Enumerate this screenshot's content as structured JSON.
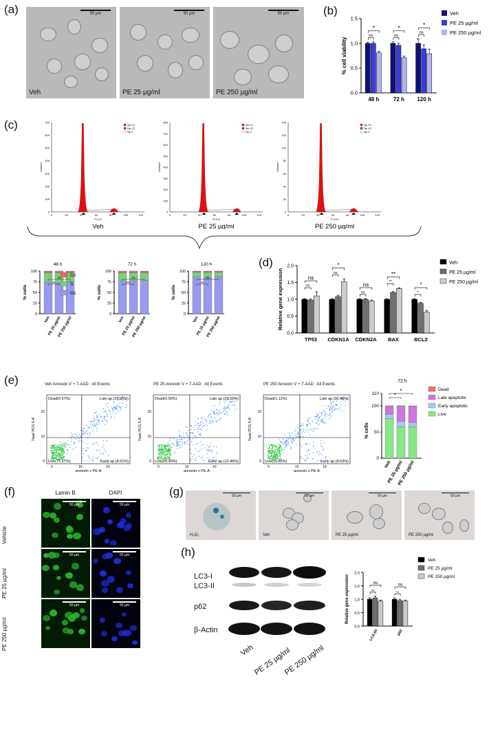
{
  "panels": {
    "a": "(a)",
    "b": "(b)",
    "c": "(c)",
    "d": "(d)",
    "e": "(e)",
    "f": "(f)",
    "g": "(g)",
    "h": "(h)"
  },
  "panel_a": {
    "images": [
      {
        "caption": "Veh",
        "scale": "50 µm"
      },
      {
        "caption": "PE 25 µg/ml",
        "scale": "50 µm"
      },
      {
        "caption": "PE 250 µg/ml",
        "scale": "50 µm"
      }
    ]
  },
  "panel_c": {
    "histograms": [
      {
        "caption": "Veh",
        "ymax": 700,
        "yticks": [
          "0",
          "100",
          "200",
          "300",
          "400",
          "500",
          "600",
          "700"
        ],
        "peak_x": 42
      },
      {
        "caption": "PE 25 µg/ml",
        "ymax": 800,
        "yticks": [
          "0",
          "100",
          "200",
          "300",
          "400",
          "500",
          "600",
          "700",
          "800"
        ],
        "peak_x": 45
      },
      {
        "caption": "PE 250 µg/ml",
        "ymax": 140,
        "yticks": [
          "0",
          "20",
          "40",
          "60",
          "80",
          "100",
          "120",
          "140"
        ],
        "peak_x": 44
      }
    ],
    "xticks": [
      "0",
      "20",
      "40",
      "60",
      "80",
      "100",
      "120"
    ],
    "xlabel": "FL2-A",
    "ylabel": "Number",
    "legend": [
      "Dip G1",
      "Dip G2",
      "Dip S"
    ]
  },
  "panel_e": {
    "plots": [
      {
        "title": "Veh Annexin V + 7-AAD : All Events",
        "dead": "Dead(0.57%)",
        "late": "Late ap.(15.35%)",
        "live": "Live(75.57%)",
        "early": "Early ap.(8.51%)"
      },
      {
        "title": "PE 25 Annexin V + 7-AAD : All Events",
        "dead": "Dead(0.59%)",
        "late": "Late ap.(28.55%)",
        "live": "Live(60.40%)",
        "early": "Early ap.(10.46%)"
      },
      {
        "title": "PE 250 Annexin V + 7-AAD : All Events",
        "dead": "Dead(1.12%)",
        "late": "Late ap.(30.40%)",
        "live": "Live(59.85%)",
        "early": "Early ap.(8.63%)"
      }
    ],
    "xlabel": "annexin v PE-A",
    "ylabel": "7aad PC5.5-A",
    "xticks": [
      "0",
      "10",
      "10"
    ],
    "yticks": [
      "0",
      "10",
      "10"
    ]
  },
  "panel_f": {
    "columns": [
      "Lamin B",
      "DAPI"
    ],
    "rows": [
      "Vehicle",
      "PE 25 µg/ml",
      "PE 250 µg/ml"
    ],
    "scale": "50 µm"
  },
  "panel_g": {
    "images": [
      {
        "caption": "H₂O₂",
        "scale": "50 µm"
      },
      {
        "caption": "Veh",
        "scale": "50 µm"
      },
      {
        "caption": "PE 25 µg/ml",
        "scale": "50 µm"
      },
      {
        "caption": "PE 250 µg/ml",
        "scale": "50 µm"
      }
    ]
  },
  "panel_h": {
    "blot_labels": [
      "LC3-I",
      "LC3-II",
      "p62",
      "β-Actin"
    ],
    "lanes": [
      "Veh",
      "PE 25 µg/ml",
      "PE 250 µg/ml"
    ]
  },
  "colors": {
    "veh_b": "#10107a",
    "pe25_b": "#3c3cdc",
    "pe250_b": "#b4b4f0",
    "g1": "#9999ee",
    "s": "#7ccd7c",
    "g2": "#e46a6a",
    "live": "#88e888",
    "early": "#a8c8f0",
    "late": "#cc77dd",
    "dead": "#f07070",
    "veh_g": "#000000",
    "pe25_g": "#707070",
    "pe250_g": "#cccccc"
  },
  "chart_data": [
    {
      "id": "b",
      "type": "bar",
      "categories": [
        "48 h",
        "72 h",
        "120 h"
      ],
      "series": [
        {
          "name": "Veh",
          "values": [
            1.0,
            1.0,
            1.0
          ],
          "err": [
            0.02,
            0.03,
            0.09
          ]
        },
        {
          "name": "PE 25 µg/ml",
          "values": [
            1.0,
            0.96,
            0.89
          ],
          "err": [
            0.03,
            0.04,
            0.08
          ]
        },
        {
          "name": "PE 250 µg/ml",
          "values": [
            0.81,
            0.71,
            0.79
          ],
          "err": [
            0.03,
            0.03,
            0.09
          ]
        }
      ],
      "ylabel": "% cell viability",
      "ylim": [
        0,
        1.5
      ],
      "yticks": [
        "0.0",
        "0.5",
        "1.0",
        "1.5"
      ],
      "significance": [
        [
          "ns",
          "*"
        ],
        [
          "ns",
          "*"
        ],
        [
          "ns",
          "*"
        ]
      ]
    },
    {
      "id": "c_bars",
      "type": "bar",
      "stacked": true,
      "panels": [
        {
          "title": "48 h",
          "categories": [
            "Veh",
            "PE 25 µg/ml",
            "PE 250 µg/ml"
          ],
          "series": [
            {
              "name": "G1",
              "values": [
                74,
                72,
                75
              ]
            },
            {
              "name": "S",
              "values": [
                22,
                24,
                21
              ]
            },
            {
              "name": "G2",
              "values": [
                4,
                4,
                4
              ]
            }
          ]
        },
        {
          "title": "72 h",
          "categories": [
            "Veh",
            "PE 25 µg/ml",
            "PE 250 µg/ml"
          ],
          "series": [
            {
              "name": "G1",
              "values": [
                76,
                77,
                78
              ]
            },
            {
              "name": "S",
              "values": [
                20,
                19,
                18
              ]
            },
            {
              "name": "G2",
              "values": [
                4,
                4,
                4
              ]
            }
          ]
        },
        {
          "title": "120 h",
          "categories": [
            "Veh",
            "PE 25 µg/ml",
            "PE 250 µg/ml"
          ],
          "series": [
            {
              "name": "G1",
              "values": [
                86,
                84,
                87
              ]
            },
            {
              "name": "S",
              "values": [
                11,
                13,
                10
              ]
            },
            {
              "name": "G2",
              "values": [
                3,
                3,
                3
              ]
            }
          ]
        }
      ],
      "legend": [
        "G2",
        "S",
        "G1"
      ],
      "ylabel": "% cells",
      "ylim": [
        0,
        100
      ],
      "yticks": [
        "0",
        "25",
        "50",
        "75",
        "100"
      ],
      "significance": [
        "ns",
        "ns"
      ]
    },
    {
      "id": "d",
      "type": "bar",
      "categories": [
        "TP53",
        "CDKN1A",
        "CDKN2A",
        "BAX",
        "BCL2"
      ],
      "series": [
        {
          "name": "Veh",
          "values": [
            1.0,
            1.0,
            1.0,
            1.0,
            1.0
          ],
          "err": [
            0.02,
            0.02,
            0.02,
            0.02,
            0.02
          ]
        },
        {
          "name": "PE 25 µg/ml",
          "values": [
            0.98,
            1.08,
            1.0,
            1.2,
            0.88
          ],
          "err": [
            0.03,
            0.04,
            0.02,
            0.03,
            0.03
          ]
        },
        {
          "name": "PE 250 µg/ml",
          "values": [
            1.1,
            1.52,
            0.95,
            1.32,
            0.62
          ],
          "err": [
            0.12,
            0.08,
            0.03,
            0.02,
            0.05
          ]
        }
      ],
      "ylabel": "Relative gene expression",
      "ylim": [
        0,
        2.0
      ],
      "yticks": [
        "0.0",
        "0.5",
        "1.0",
        "1.5",
        "2.0"
      ],
      "significance": [
        [
          "ns",
          "ns"
        ],
        [
          "ns",
          "*"
        ],
        [
          "ns",
          "ns"
        ],
        [
          "**",
          "**"
        ],
        [
          "*",
          "*"
        ]
      ]
    },
    {
      "id": "e_bars",
      "type": "bar",
      "stacked": true,
      "title": "72 h",
      "categories": [
        "Veh",
        "PE 25 µg/ml",
        "PE 250 µg/ml"
      ],
      "series": [
        {
          "name": "Live",
          "values": [
            75.6,
            60.4,
            59.9
          ]
        },
        {
          "name": "Early apoptotic",
          "values": [
            8.5,
            10.5,
            8.6
          ]
        },
        {
          "name": "Late apoptotic",
          "values": [
            15.4,
            28.6,
            30.4
          ]
        },
        {
          "name": "Dead",
          "values": [
            0.6,
            0.6,
            1.1
          ]
        }
      ],
      "legend": [
        "Dead",
        "Late apoptotic",
        "Early apoptotic",
        "Live"
      ],
      "ylabel": "% cells",
      "ylim": [
        0,
        110
      ],
      "yticks": [
        "0",
        "50",
        "100",
        "110"
      ],
      "significance": [
        "*",
        "*"
      ]
    },
    {
      "id": "h",
      "type": "bar",
      "categories": [
        "LC3-II/I",
        "p62"
      ],
      "series": [
        {
          "name": "Veh",
          "values": [
            1.0,
            1.0
          ],
          "err": [
            0.05,
            0.05
          ]
        },
        {
          "name": "PE 25 µg/ml",
          "values": [
            1.05,
            0.95
          ],
          "err": [
            0.07,
            0.05
          ]
        },
        {
          "name": "PE 250 µg/ml",
          "values": [
            0.93,
            0.93
          ],
          "err": [
            0.04,
            0.04
          ]
        }
      ],
      "ylabel": "Relative gene expression",
      "ylim": [
        0,
        2.0
      ],
      "yticks": [
        "0.0",
        "0.5",
        "1.0",
        "1.5",
        "2.0"
      ],
      "significance": [
        [
          "ns",
          "ns"
        ],
        [
          "ns",
          "ns"
        ]
      ]
    }
  ]
}
